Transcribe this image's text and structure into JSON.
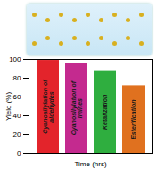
{
  "chart_data": {
    "type": "bar",
    "categories": [
      "Cyanosilylation of aldehydes",
      "Cyanosilylation of Imines",
      "Ketalization",
      "Esterification"
    ],
    "values": [
      99,
      96,
      88,
      72
    ],
    "colors": [
      "#e3242b",
      "#c42a8f",
      "#2fae3f",
      "#e0711f"
    ],
    "x_label": "Time (hrs)",
    "y_label": "Yield (%)",
    "ylim": [
      0,
      100
    ],
    "yticks": [
      0,
      20,
      40,
      60,
      80,
      100
    ],
    "tick_labels": "y",
    "grid": false
  }
}
